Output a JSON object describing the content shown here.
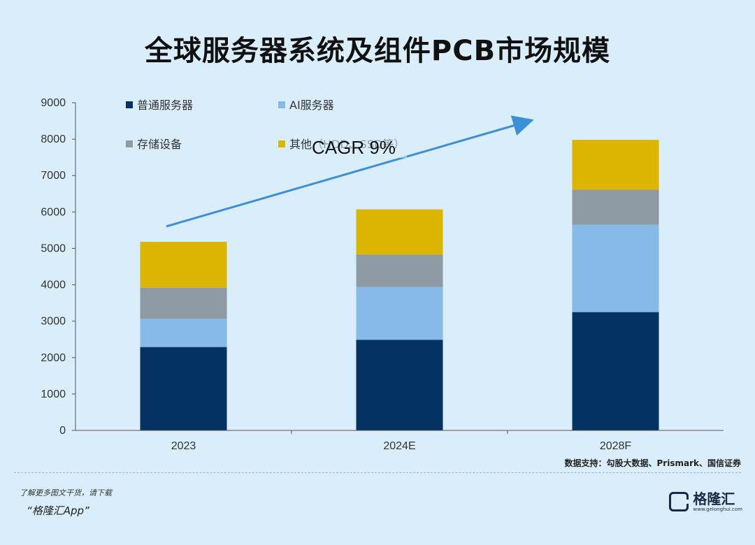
{
  "title": "全球服务器系统及组件PCB市场规模",
  "chart_data": {
    "type": "bar",
    "stacked": true,
    "categories": [
      "2023",
      "2024E",
      "2028F"
    ],
    "series": [
      {
        "name": "普通服务器",
        "color": "#033263",
        "values": [
          2290,
          2490,
          3250
        ]
      },
      {
        "name": "AI服务器",
        "color": "#86b9e6",
        "values": [
          780,
          1450,
          2400
        ]
      },
      {
        "name": "存储设备",
        "color": "#8f9ba4",
        "values": [
          850,
          890,
          960
        ]
      },
      {
        "name": "其他（HDD、SSD等）",
        "color": "#dcb500",
        "values": [
          1260,
          1240,
          1370
        ]
      }
    ],
    "ylim": [
      0,
      9000
    ],
    "yticks": [
      0,
      1000,
      2000,
      3000,
      4000,
      5000,
      6000,
      7000,
      8000,
      9000
    ],
    "grid": false,
    "legend_position": "top-left",
    "annotation": "CAGR 9%",
    "annotation_color": "#3d8fd6"
  },
  "source": "数据支持：勾股大数据、Prismark、国信证券",
  "footer": {
    "line1": "了解更多图文干货，请下载",
    "line2": "“格隆汇App”",
    "brand_name": "格隆汇",
    "brand_url": "www.gelonghui.com"
  }
}
